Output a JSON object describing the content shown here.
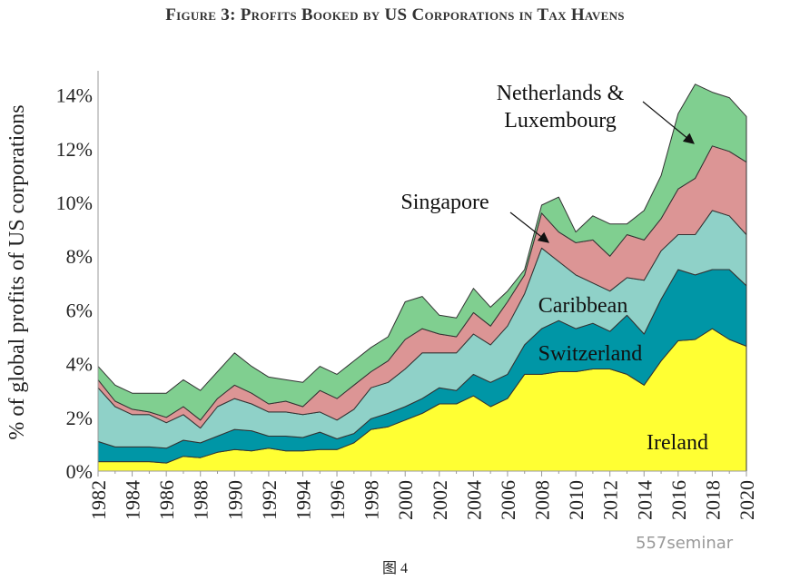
{
  "title": "Figure 3: Profits Booked by US Corporations in Tax Havens",
  "caption": "图 4",
  "watermark": "557seminar",
  "chart_data": {
    "type": "area",
    "stacked": true,
    "title": "Figure 3: Profits Booked by US Corporations in Tax Havens",
    "ylabel": "% of global profits of US corporations",
    "xlabel": "",
    "xlim": [
      1982,
      2020
    ],
    "ylim": [
      0,
      14.5
    ],
    "yticks": [
      0,
      2,
      4,
      6,
      8,
      10,
      12,
      14
    ],
    "ytick_labels": [
      "0%",
      "2%",
      "4%",
      "6%",
      "8%",
      "10%",
      "12%",
      "14%"
    ],
    "xticks": [
      1982,
      1984,
      1986,
      1988,
      1990,
      1992,
      1994,
      1996,
      1998,
      2000,
      2002,
      2004,
      2006,
      2008,
      2010,
      2012,
      2014,
      2016,
      2018,
      2020
    ],
    "xtick_labels": [
      "1982",
      "1984",
      "1986",
      "1988",
      "1990",
      "1992",
      "1994",
      "1996",
      "1998",
      "2000",
      "2002",
      "2004",
      "2006",
      "2008",
      "2010",
      "2012",
      "2014",
      "2016",
      "2018",
      "2020"
    ],
    "grid": false,
    "legend": "inline annotations",
    "x": [
      1982,
      1983,
      1984,
      1985,
      1986,
      1987,
      1988,
      1989,
      1990,
      1991,
      1992,
      1993,
      1994,
      1995,
      1996,
      1997,
      1998,
      1999,
      2000,
      2001,
      2002,
      2003,
      2004,
      2005,
      2006,
      2007,
      2008,
      2009,
      2010,
      2011,
      2012,
      2013,
      2014,
      2015,
      2016,
      2017,
      2018,
      2019,
      2020
    ],
    "series": [
      {
        "name": "Ireland",
        "color": "#ffff33",
        "values": [
          0.35,
          0.35,
          0.35,
          0.35,
          0.3,
          0.55,
          0.5,
          0.7,
          0.8,
          0.75,
          0.85,
          0.75,
          0.75,
          0.8,
          0.8,
          1.05,
          1.55,
          1.65,
          1.9,
          2.15,
          2.5,
          2.5,
          2.8,
          2.4,
          2.7,
          3.6,
          3.6,
          3.7,
          3.7,
          3.8,
          3.8,
          3.6,
          3.2,
          4.1,
          4.85,
          4.9,
          5.3,
          4.9,
          4.65
        ]
      },
      {
        "name": "Switzerland",
        "color": "#0096a6",
        "values": [
          0.75,
          0.55,
          0.55,
          0.55,
          0.55,
          0.6,
          0.55,
          0.6,
          0.75,
          0.75,
          0.45,
          0.55,
          0.5,
          0.65,
          0.4,
          0.35,
          0.4,
          0.5,
          0.5,
          0.55,
          0.6,
          0.5,
          0.8,
          0.9,
          0.9,
          1.1,
          1.7,
          1.9,
          1.6,
          1.7,
          1.4,
          2.2,
          1.9,
          2.3,
          2.65,
          2.4,
          2.2,
          2.6,
          2.25
        ]
      },
      {
        "name": "Caribbean",
        "color": "#8fd1c8",
        "values": [
          2.0,
          1.5,
          1.2,
          1.2,
          0.95,
          0.95,
          0.55,
          1.1,
          1.15,
          1.0,
          0.9,
          0.9,
          0.85,
          0.75,
          0.7,
          0.9,
          1.15,
          1.15,
          1.4,
          1.7,
          1.3,
          1.4,
          1.5,
          1.4,
          1.8,
          1.9,
          3.0,
          2.2,
          2.0,
          1.5,
          1.5,
          1.4,
          2.0,
          1.8,
          1.3,
          1.5,
          2.2,
          2.0,
          1.9
        ]
      },
      {
        "name": "Singapore",
        "color": "#dc9595",
        "values": [
          0.3,
          0.2,
          0.2,
          0.1,
          0.2,
          0.3,
          0.3,
          0.3,
          0.5,
          0.4,
          0.3,
          0.4,
          0.3,
          0.8,
          0.8,
          0.9,
          0.6,
          0.8,
          1.1,
          0.9,
          0.7,
          0.6,
          0.8,
          0.7,
          0.9,
          0.7,
          1.3,
          1.1,
          1.2,
          1.6,
          1.3,
          1.6,
          1.5,
          1.2,
          1.7,
          2.1,
          2.4,
          2.4,
          2.7
        ]
      },
      {
        "name": "Netherlands & Luxembourg",
        "color": "#80cf90",
        "values": [
          0.5,
          0.6,
          0.6,
          0.7,
          0.9,
          1.0,
          1.1,
          1.0,
          1.2,
          1.0,
          1.0,
          0.8,
          0.9,
          0.9,
          0.9,
          0.9,
          0.9,
          0.9,
          1.4,
          1.2,
          0.7,
          0.7,
          0.9,
          0.7,
          0.4,
          0.2,
          0.3,
          1.3,
          0.4,
          0.9,
          1.2,
          0.4,
          1.1,
          1.6,
          2.8,
          3.5,
          2.0,
          2.0,
          1.7
        ]
      }
    ],
    "annotations": {
      "nl_line1": "Netherlands &",
      "nl_line2": "Luxembourg",
      "singapore": "Singapore",
      "caribbean": "Caribbean",
      "switzerland": "Switzerland",
      "ireland": "Ireland"
    }
  }
}
